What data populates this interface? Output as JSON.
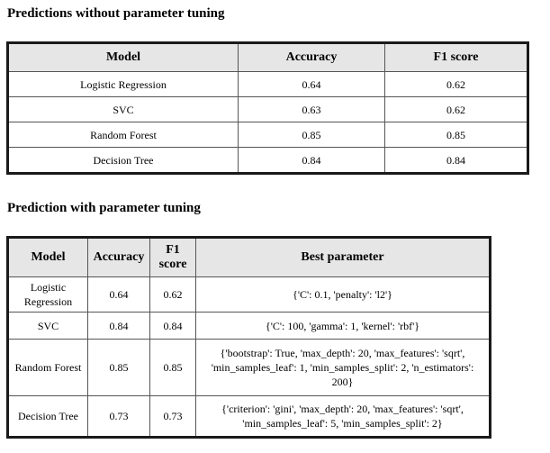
{
  "section1": {
    "title": "Predictions without parameter tuning",
    "headers": [
      "Model",
      "Accuracy",
      "F1 score"
    ],
    "rows": [
      [
        "Logistic Regression",
        "0.64",
        "0.62"
      ],
      [
        "SVC",
        "0.63",
        "0.62"
      ],
      [
        "Random Forest",
        "0.85",
        "0.85"
      ],
      [
        "Decision Tree",
        "0.84",
        "0.84"
      ]
    ]
  },
  "section2": {
    "title": "Prediction with parameter tuning",
    "headers": [
      "Model",
      "Accuracy",
      "F1 score",
      "Best parameter"
    ],
    "rows": [
      [
        "Logistic Regression",
        "0.64",
        "0.62",
        "{'C': 0.1, 'penalty': 'l2'}"
      ],
      [
        "SVC",
        "0.84",
        "0.84",
        "{'C': 100, 'gamma': 1, 'kernel': 'rbf'}"
      ],
      [
        "Random Forest",
        "0.85",
        "0.85",
        "{'bootstrap': True, 'max_depth': 20, 'max_features': 'sqrt', 'min_samples_leaf': 1, 'min_samples_split': 2, 'n_estimators': 200}"
      ],
      [
        "Decision Tree",
        "0.73",
        "0.73",
        "{'criterion': 'gini', 'max_depth': 20, 'max_features': 'sqrt', 'min_samples_leaf': 5, 'min_samples_split': 2}"
      ]
    ]
  }
}
